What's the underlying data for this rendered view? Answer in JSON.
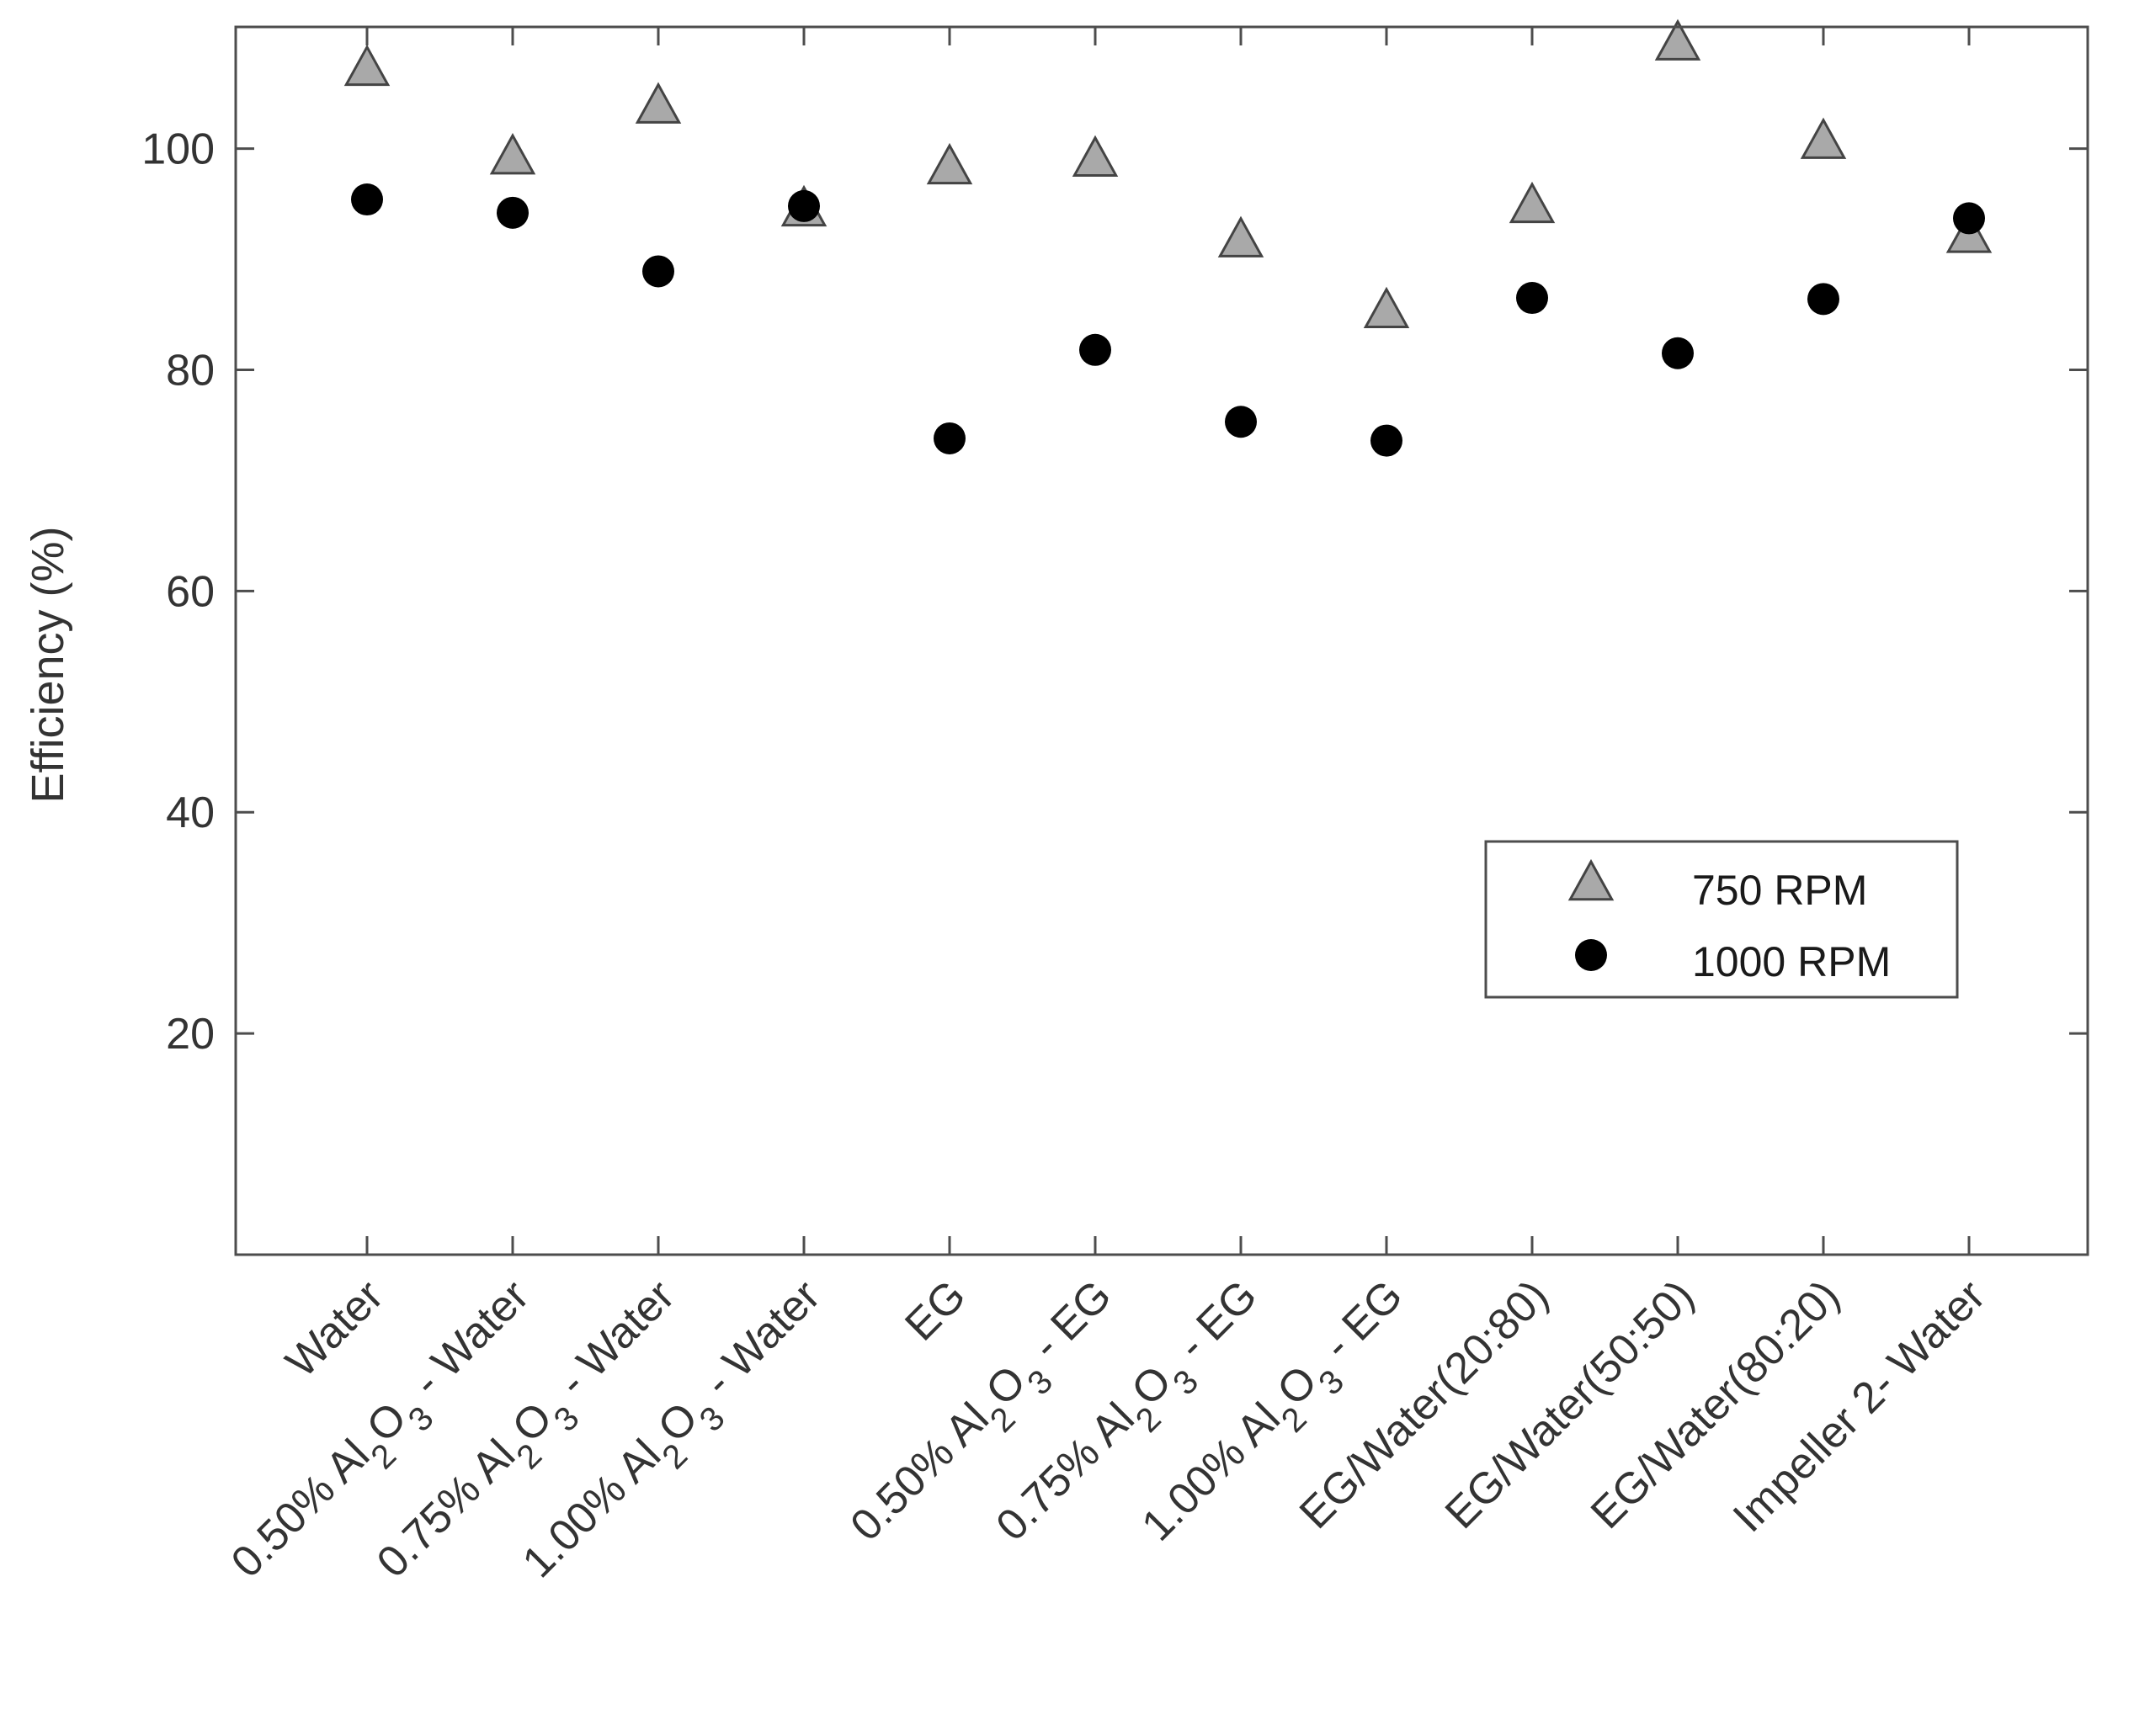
{
  "chart_data": {
    "type": "scatter",
    "title": "",
    "xlabel": "",
    "ylabel": "Efficiency (%)",
    "ylim": [
      0,
      111
    ],
    "yticks": [
      20,
      40,
      60,
      80,
      100
    ],
    "grid": false,
    "legend_position": "right",
    "categories": [
      {
        "label": "Water",
        "parts": [
          [
            "Water",
            "n"
          ]
        ]
      },
      {
        "label": "0.50% Al2O3 - Water",
        "parts": [
          [
            "0.50% Al",
            "n"
          ],
          [
            "2",
            "sub"
          ],
          [
            "O",
            "n"
          ],
          [
            "3",
            "sub"
          ],
          [
            " - Water",
            "n"
          ]
        ]
      },
      {
        "label": "0.75% Al2O3 - Water",
        "parts": [
          [
            "0.75% Al",
            "n"
          ],
          [
            "2",
            "sub"
          ],
          [
            "O",
            "n"
          ],
          [
            "3",
            "sub"
          ],
          [
            " - Water",
            "n"
          ]
        ]
      },
      {
        "label": "1.00% Al2O3 - Water",
        "parts": [
          [
            "1.00% Al",
            "n"
          ],
          [
            "2",
            "sub"
          ],
          [
            "O",
            "n"
          ],
          [
            "3",
            "sub"
          ],
          [
            " - Water",
            "n"
          ]
        ]
      },
      {
        "label": "EG",
        "parts": [
          [
            "EG",
            "n"
          ]
        ]
      },
      {
        "label": "0.50% Al2O3 - EG",
        "parts": [
          [
            "0.50% Al",
            "n"
          ],
          [
            "2",
            "sub"
          ],
          [
            "O",
            "n"
          ],
          [
            "3",
            "sub"
          ],
          [
            " - EG",
            "n"
          ]
        ]
      },
      {
        "label": "0.75% Al2O3 - EG",
        "parts": [
          [
            "0.75% Al",
            "n"
          ],
          [
            "2",
            "sub"
          ],
          [
            "O",
            "n"
          ],
          [
            "3",
            "sub"
          ],
          [
            " - EG",
            "n"
          ]
        ]
      },
      {
        "label": "1.00% Al2O3 - EG",
        "parts": [
          [
            "1.00% Al",
            "n"
          ],
          [
            "2",
            "sub"
          ],
          [
            "O",
            "n"
          ],
          [
            "3",
            "sub"
          ],
          [
            " - EG",
            "n"
          ]
        ]
      },
      {
        "label": "EG/Water(20:80)",
        "parts": [
          [
            "EG/Water(20:80)",
            "n"
          ]
        ]
      },
      {
        "label": "EG/Water(50:50)",
        "parts": [
          [
            "EG/Water(50:50)",
            "n"
          ]
        ]
      },
      {
        "label": "EG/Water(80:20)",
        "parts": [
          [
            "EG/Water(80:20)",
            "n"
          ]
        ]
      },
      {
        "label": "Impeller 2- Water",
        "parts": [
          [
            "Impeller 2- Water",
            "n"
          ]
        ]
      }
    ],
    "series": [
      {
        "name": "750 RPM",
        "marker": "triangle",
        "color": "#a9a9a9",
        "edge_color": "#444444",
        "values": [
          107.2,
          99.2,
          103.8,
          94.5,
          98.3,
          99.0,
          91.7,
          85.3,
          94.8,
          109.5,
          100.6,
          92.1
        ]
      },
      {
        "name": "1000 RPM",
        "marker": "circle",
        "color": "#000000",
        "values": [
          95.4,
          94.2,
          88.9,
          94.8,
          73.8,
          81.8,
          75.3,
          73.6,
          86.5,
          81.5,
          86.4,
          93.7
        ]
      }
    ]
  }
}
